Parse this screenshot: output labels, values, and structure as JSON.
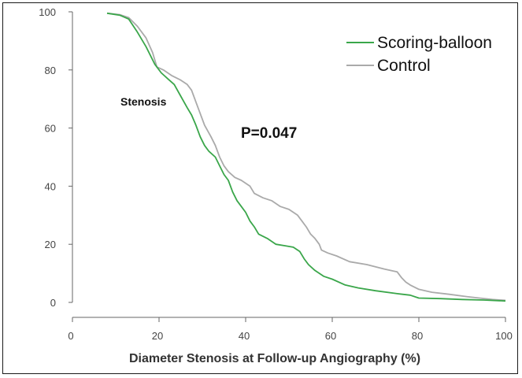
{
  "chart_data": {
    "type": "line",
    "title": "",
    "xlabel": "Diameter Stenosis at Follow-up Angiography (%)",
    "ylabel": "",
    "xlim": [
      0,
      100
    ],
    "ylim": [
      0,
      100
    ],
    "x_ticks": [
      0,
      20,
      40,
      60,
      80,
      100
    ],
    "y_ticks": [
      0,
      20,
      40,
      60,
      80,
      100
    ],
    "grid": false,
    "legend_position": "top-right",
    "annotations": {
      "stenosis": "Stenosis",
      "p_value": "P=0.047"
    },
    "series": [
      {
        "name": "Scoring-balloon",
        "color": "#3aa64a",
        "points": [
          [
            8,
            99.5
          ],
          [
            11,
            98.8
          ],
          [
            13,
            97.5
          ],
          [
            15,
            93
          ],
          [
            17,
            88
          ],
          [
            19,
            82
          ],
          [
            20.5,
            79
          ],
          [
            22,
            77
          ],
          [
            23.5,
            75
          ],
          [
            25,
            71
          ],
          [
            26.5,
            67
          ],
          [
            27.5,
            64.5
          ],
          [
            28.5,
            61
          ],
          [
            29.5,
            57
          ],
          [
            30.5,
            54
          ],
          [
            31.5,
            52
          ],
          [
            33,
            50
          ],
          [
            34,
            47
          ],
          [
            35,
            44
          ],
          [
            36,
            42
          ],
          [
            37,
            38
          ],
          [
            38,
            35
          ],
          [
            39,
            33
          ],
          [
            40,
            31
          ],
          [
            41,
            28
          ],
          [
            42,
            26
          ],
          [
            43,
            23.5
          ],
          [
            45,
            22
          ],
          [
            47,
            20
          ],
          [
            49,
            19.5
          ],
          [
            51,
            19
          ],
          [
            52.5,
            17.5
          ],
          [
            53.5,
            15
          ],
          [
            54.5,
            13
          ],
          [
            56,
            11
          ],
          [
            58,
            9
          ],
          [
            60,
            8
          ],
          [
            63,
            6
          ],
          [
            66,
            5
          ],
          [
            70,
            4
          ],
          [
            75,
            3
          ],
          [
            78,
            2.5
          ],
          [
            80,
            1.5
          ],
          [
            85,
            1.3
          ],
          [
            90,
            1
          ],
          [
            95,
            0.8
          ],
          [
            100,
            0.5
          ]
        ]
      },
      {
        "name": "Control",
        "color": "#aaaaaa",
        "points": [
          [
            8,
            99.5
          ],
          [
            11,
            99
          ],
          [
            13,
            98
          ],
          [
            15,
            95
          ],
          [
            17,
            91
          ],
          [
            18.5,
            86
          ],
          [
            19.5,
            81
          ],
          [
            21,
            80
          ],
          [
            23,
            78
          ],
          [
            25,
            76.5
          ],
          [
            26.5,
            75
          ],
          [
            27.5,
            73
          ],
          [
            28.5,
            69
          ],
          [
            29.5,
            65
          ],
          [
            30.5,
            61
          ],
          [
            32,
            57
          ],
          [
            33,
            54
          ],
          [
            34,
            50
          ],
          [
            35,
            47
          ],
          [
            36,
            45
          ],
          [
            37.5,
            43
          ],
          [
            39,
            42
          ],
          [
            41,
            40
          ],
          [
            42,
            37.5
          ],
          [
            44,
            36
          ],
          [
            46,
            35
          ],
          [
            48,
            33
          ],
          [
            50,
            32
          ],
          [
            52,
            30
          ],
          [
            53,
            28
          ],
          [
            54,
            26
          ],
          [
            55,
            23.5
          ],
          [
            56,
            22
          ],
          [
            57,
            20
          ],
          [
            57.5,
            18
          ],
          [
            59,
            17
          ],
          [
            61,
            16
          ],
          [
            64,
            14
          ],
          [
            68,
            13
          ],
          [
            72,
            11.5
          ],
          [
            75,
            10.5
          ],
          [
            76,
            8.5
          ],
          [
            77,
            7
          ],
          [
            78,
            6
          ],
          [
            80,
            4.5
          ],
          [
            83,
            3.5
          ],
          [
            87,
            2.8
          ],
          [
            91,
            2
          ],
          [
            94,
            1.5
          ],
          [
            97,
            1
          ],
          [
            100,
            0.7
          ]
        ]
      }
    ]
  }
}
